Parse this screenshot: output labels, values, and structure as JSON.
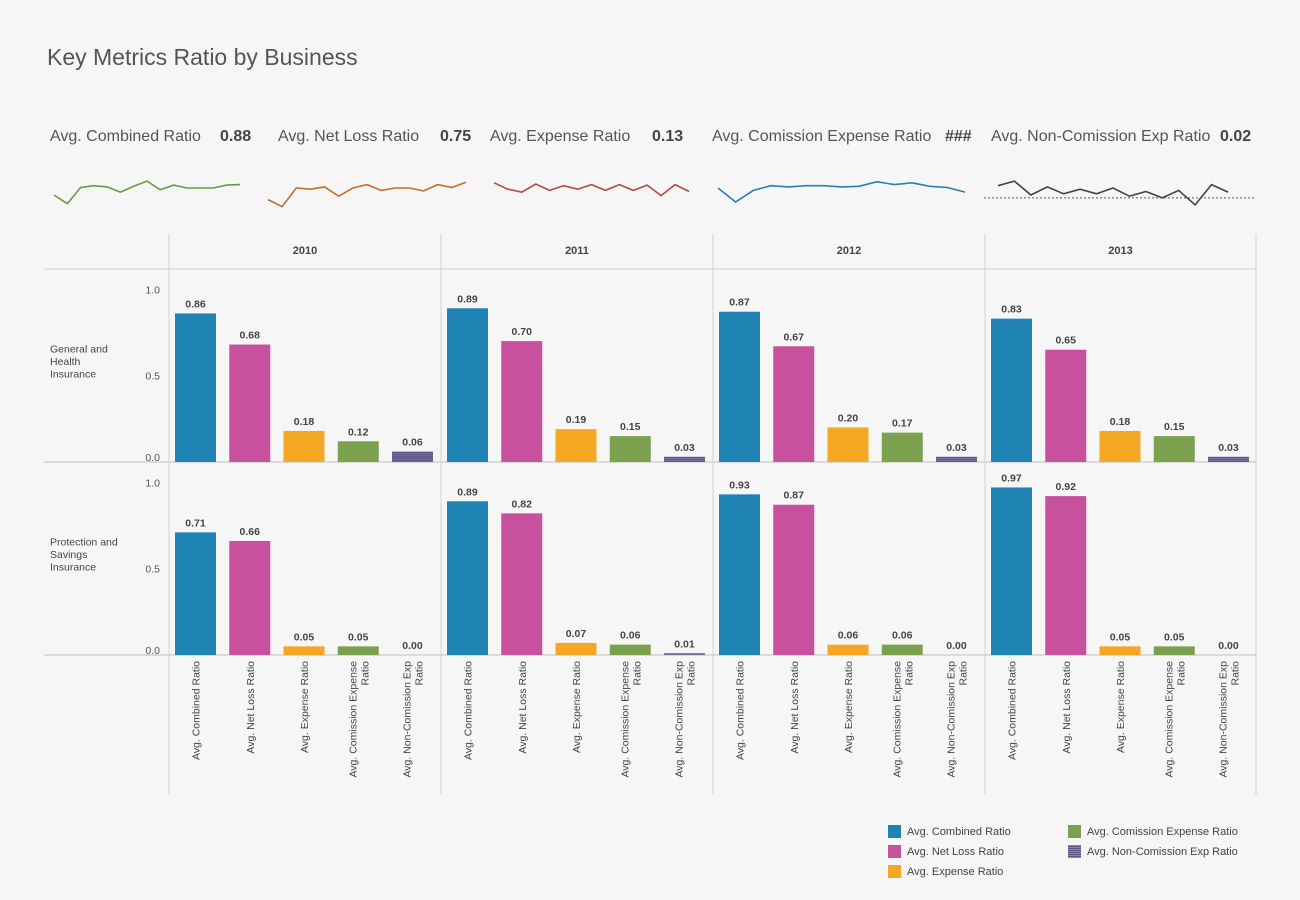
{
  "page_title": "Key Metrics Ratio by Business",
  "kpis": [
    {
      "label": "Avg. Combined Ratio",
      "value": "0.88",
      "color": "#6b9a3f",
      "spark": [
        0.5,
        0.35,
        0.63,
        0.66,
        0.64,
        0.55,
        0.65,
        0.74,
        0.59,
        0.67,
        0.62,
        0.62,
        0.62,
        0.67,
        0.68
      ]
    },
    {
      "label": "Avg. Net Loss Ratio",
      "value": "0.75",
      "color": "#c4702a",
      "spark": [
        0.42,
        0.3,
        0.62,
        0.6,
        0.64,
        0.48,
        0.62,
        0.68,
        0.58,
        0.62,
        0.62,
        0.57,
        0.68,
        0.63,
        0.72
      ]
    },
    {
      "label": "Avg. Expense Ratio",
      "value": "0.13",
      "color": "#b34a4a",
      "spark": [
        0.71,
        0.6,
        0.55,
        0.69,
        0.58,
        0.66,
        0.6,
        0.68,
        0.58,
        0.68,
        0.58,
        0.67,
        0.49,
        0.68,
        0.56
      ]
    },
    {
      "label": "Avg. Comission Expense Ratio",
      "value": "###",
      "color": "#2a7fb2",
      "spark": [
        0.62,
        0.38,
        0.58,
        0.66,
        0.64,
        0.66,
        0.66,
        0.64,
        0.65,
        0.73,
        0.68,
        0.71,
        0.65,
        0.63,
        0.55
      ]
    },
    {
      "label": "Avg. Non-Comission Exp Ratio",
      "value": "0.02",
      "color": "#444444",
      "spark": [
        0.66,
        0.74,
        0.5,
        0.64,
        0.52,
        0.6,
        0.52,
        0.62,
        0.48,
        0.56,
        0.45,
        0.58,
        0.33,
        0.68,
        0.55
      ],
      "reference_line": 0.45
    }
  ],
  "chart_data": {
    "type": "bar",
    "columns": [
      "2010",
      "2011",
      "2012",
      "2013"
    ],
    "rows": [
      "General and Health Insurance",
      "Protection and Savings Insurance"
    ],
    "row_label_lines": [
      [
        "General and",
        "Health",
        "Insurance"
      ],
      [
        "Protection and",
        "Savings",
        "Insurance"
      ]
    ],
    "categories": [
      "Avg. Combined Ratio",
      "Avg. Net Loss Ratio",
      "Avg. Expense Ratio",
      "Avg. Comission Expense Ratio",
      "Avg. Non-Comission Exp Ratio"
    ],
    "category_label_lines": [
      [
        "Avg. Combined Ratio"
      ],
      [
        "Avg. Net Loss Ratio"
      ],
      [
        "Avg. Expense Ratio"
      ],
      [
        "Avg. Comission Expense",
        "Ratio"
      ],
      [
        "Avg. Non-Comission Exp",
        "Ratio"
      ]
    ],
    "colors": [
      "#1f83b4",
      "#c7519c",
      "#f5a623",
      "#7ba14e",
      "#5c5587"
    ],
    "yticks": [
      0.0,
      0.5,
      1.0
    ],
    "ylim": [
      0,
      1.1
    ],
    "values": [
      [
        [
          0.86,
          0.68,
          0.18,
          0.12,
          0.06
        ],
        [
          0.89,
          0.7,
          0.19,
          0.15,
          0.03
        ],
        [
          0.87,
          0.67,
          0.2,
          0.17,
          0.03
        ],
        [
          0.83,
          0.65,
          0.18,
          0.15,
          0.03
        ]
      ],
      [
        [
          0.71,
          0.66,
          0.05,
          0.05,
          0.0
        ],
        [
          0.89,
          0.82,
          0.07,
          0.06,
          0.01
        ],
        [
          0.93,
          0.87,
          0.06,
          0.06,
          0.0
        ],
        [
          0.97,
          0.92,
          0.05,
          0.05,
          0.0
        ]
      ]
    ],
    "legend": {
      "position": "bottom-right",
      "items": [
        "Avg. Combined Ratio",
        "Avg. Net Loss Ratio",
        "Avg. Expense Ratio",
        "Avg. Comission Expense Ratio",
        "Avg. Non-Comission Exp Ratio"
      ]
    }
  }
}
